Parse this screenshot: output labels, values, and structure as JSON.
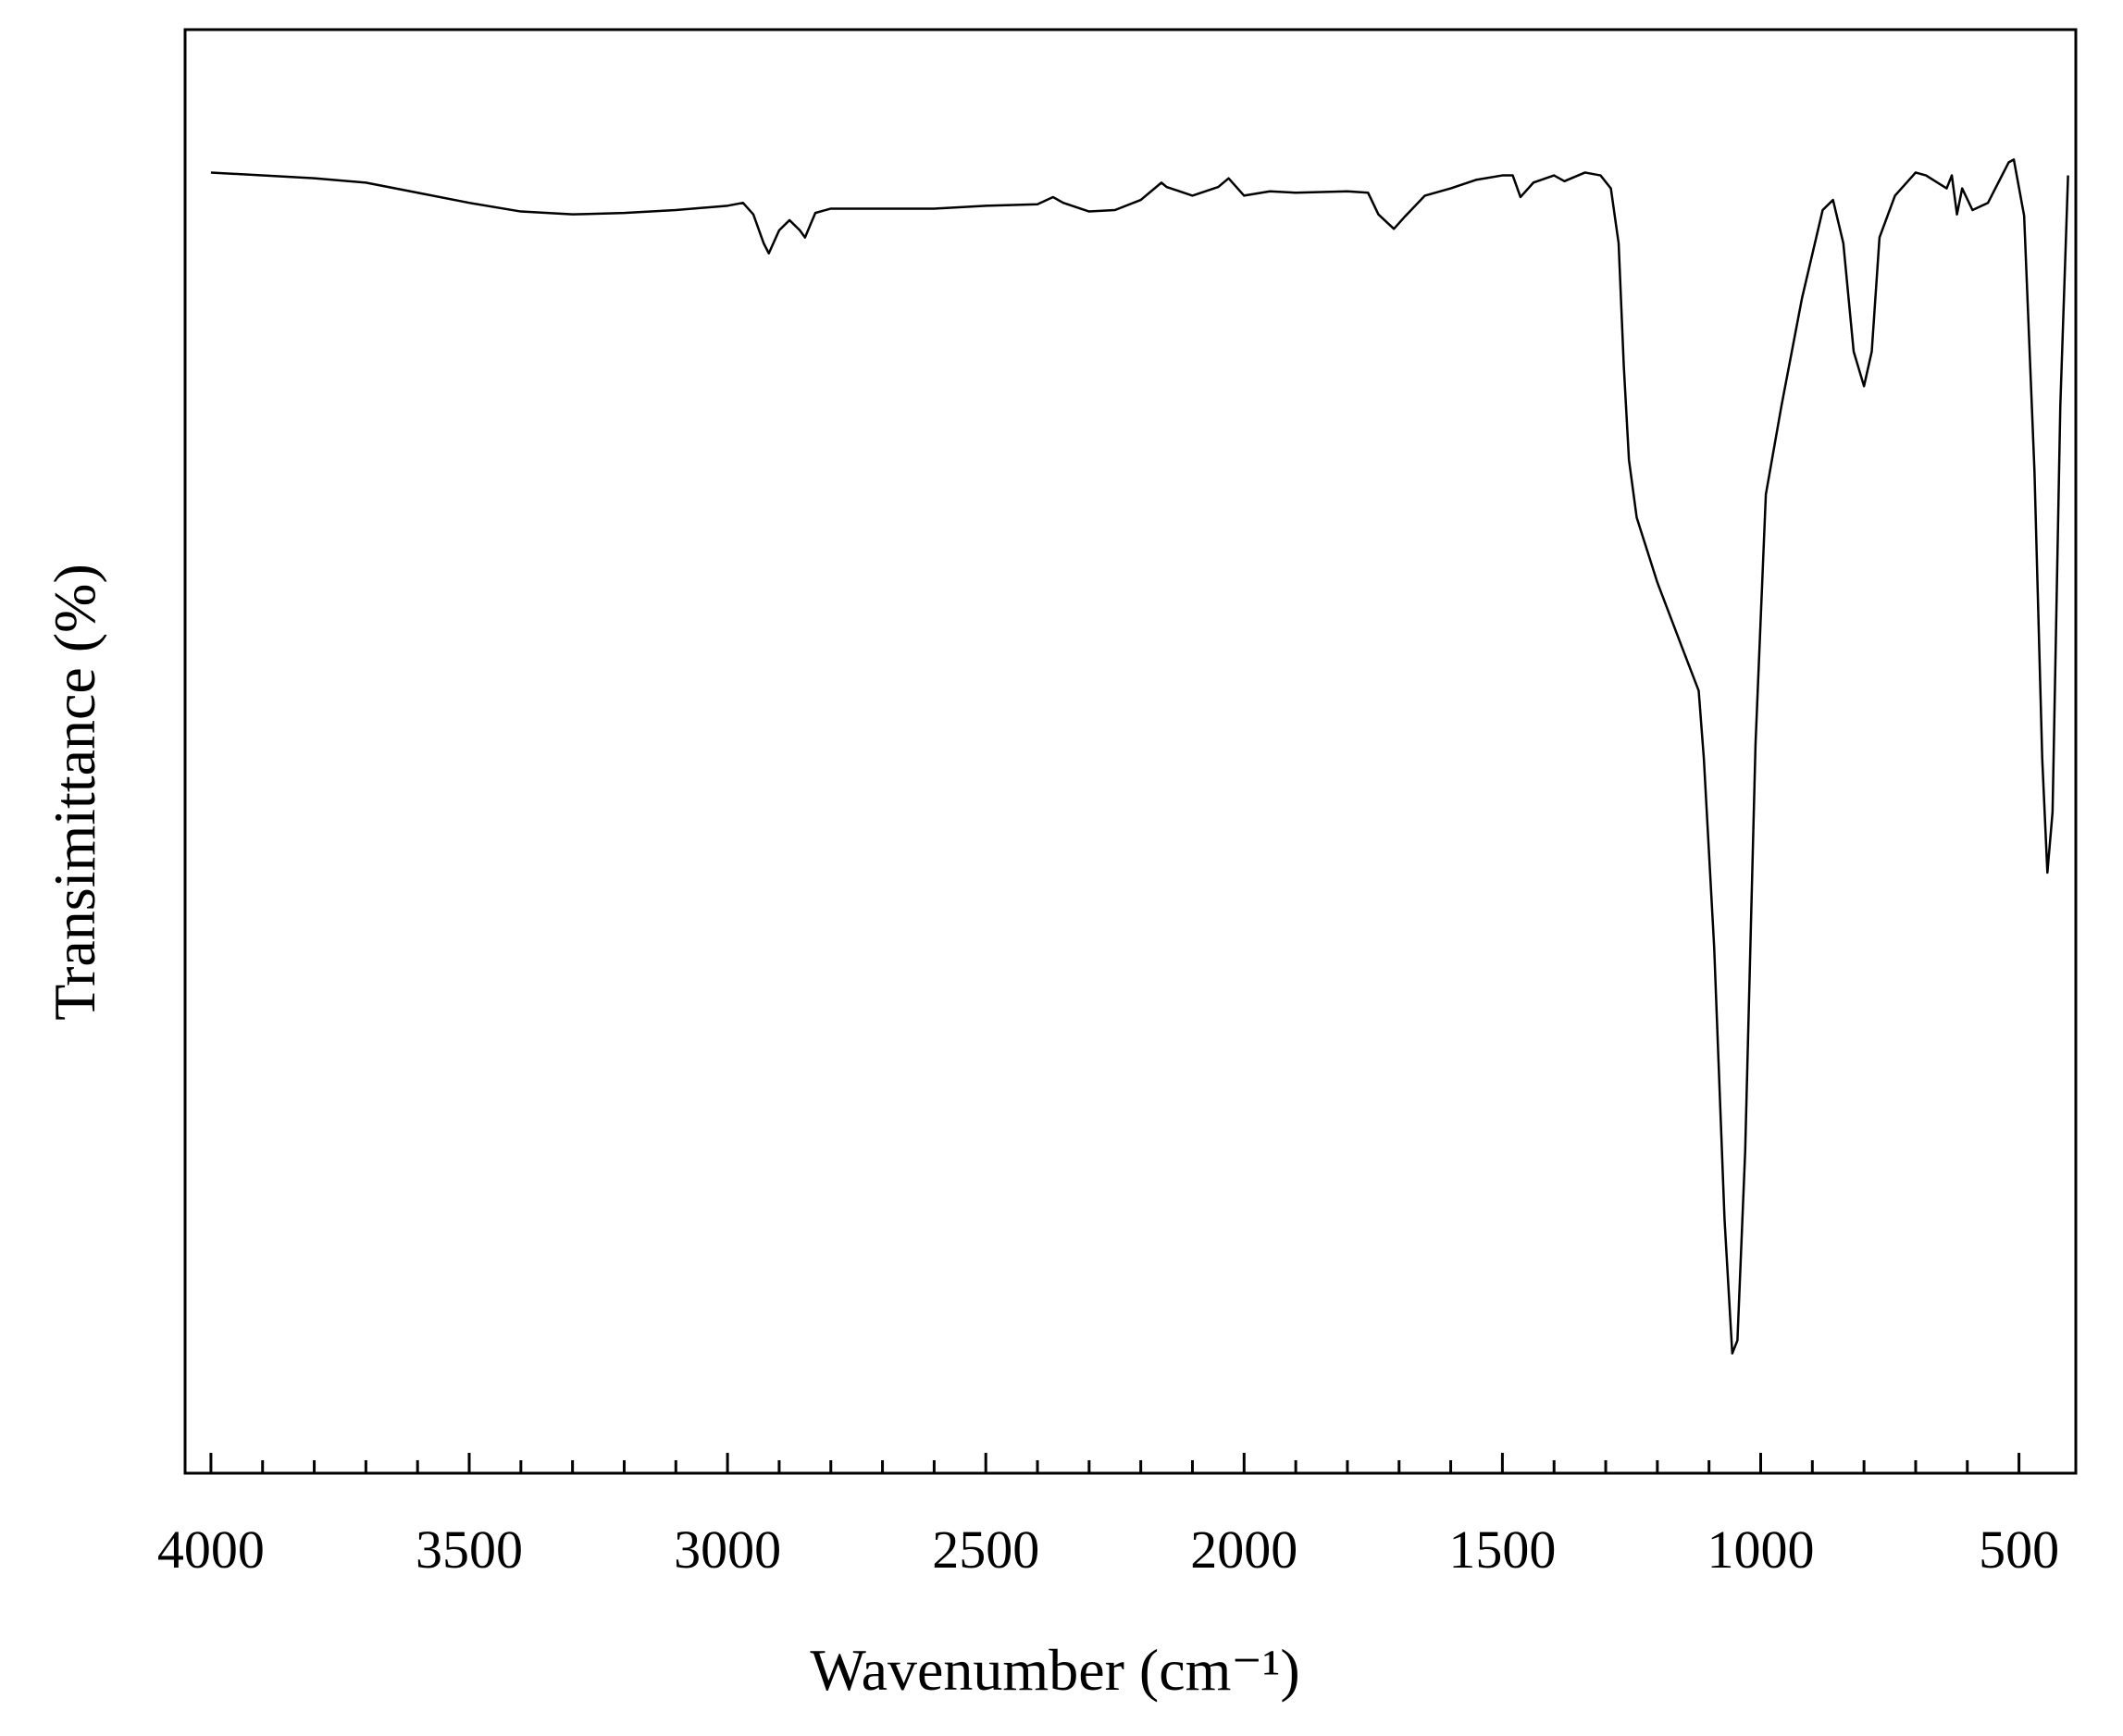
{
  "chart_data": {
    "type": "line",
    "x_label": "Wavenumber (cm⁻¹)",
    "y_label": "Transimittance (%)",
    "xlim": [
      4050,
      390
    ],
    "ylim": [
      0,
      100
    ],
    "xticks": [
      4000,
      3500,
      3000,
      2500,
      2000,
      1500,
      1000,
      500
    ],
    "xminorticks": [
      3900,
      3800,
      3700,
      3600,
      3400,
      3300,
      3200,
      3100,
      2900,
      2800,
      2700,
      2600,
      2400,
      2300,
      2200,
      2100,
      1900,
      1800,
      1700,
      1600,
      1400,
      1300,
      1200,
      1100,
      900,
      800,
      700,
      600
    ],
    "series": [
      {
        "color": "#000000",
        "x": [
          4000,
          3800,
          3700,
          3600,
          3500,
          3400,
          3300,
          3200,
          3100,
          3000,
          2970,
          2950,
          2930,
          2920,
          2900,
          2880,
          2860,
          2850,
          2830,
          2800,
          2700,
          2600,
          2500,
          2400,
          2370,
          2350,
          2300,
          2250,
          2200,
          2160,
          2150,
          2100,
          2050,
          2030,
          2000,
          1950,
          1900,
          1800,
          1760,
          1740,
          1710,
          1690,
          1650,
          1600,
          1550,
          1500,
          1480,
          1465,
          1440,
          1400,
          1380,
          1340,
          1310,
          1290,
          1275,
          1265,
          1255,
          1240,
          1200,
          1150,
          1120,
          1110,
          1090,
          1070,
          1055,
          1045,
          1030,
          1010,
          990,
          960,
          920,
          880,
          860,
          840,
          820,
          800,
          785,
          770,
          740,
          700,
          680,
          640,
          630,
          620,
          610,
          590,
          560,
          520,
          510,
          490,
          470,
          455,
          445,
          435,
          420,
          405
        ],
        "values": [
          90.1,
          89.7,
          89.4,
          88.7,
          88.0,
          87.4,
          87.2,
          87.3,
          87.5,
          87.8,
          88.0,
          87.2,
          85.2,
          84.5,
          86.1,
          86.8,
          86.1,
          85.6,
          87.3,
          87.6,
          87.6,
          87.6,
          87.8,
          87.9,
          88.4,
          88.0,
          87.4,
          87.5,
          88.2,
          89.4,
          89.1,
          88.5,
          89.1,
          89.7,
          88.5,
          88.8,
          88.7,
          88.8,
          88.7,
          87.2,
          86.2,
          87.0,
          88.5,
          89.0,
          89.6,
          89.9,
          89.9,
          88.4,
          89.4,
          89.9,
          89.5,
          90.1,
          89.9,
          89.0,
          85.2,
          76.7,
          70.2,
          66.2,
          61.7,
          57.0,
          54.2,
          49.5,
          36.4,
          17.6,
          8.3,
          9.2,
          22.3,
          50.5,
          67.8,
          73.9,
          81.4,
          87.5,
          88.2,
          85.2,
          77.7,
          75.3,
          77.7,
          85.6,
          88.5,
          90.1,
          89.9,
          89.0,
          89.9,
          87.2,
          89.0,
          87.5,
          88.0,
          90.8,
          91.0,
          87.1,
          69.4,
          49.5,
          41.6,
          45.8,
          73.9,
          89.9
        ]
      }
    ]
  }
}
